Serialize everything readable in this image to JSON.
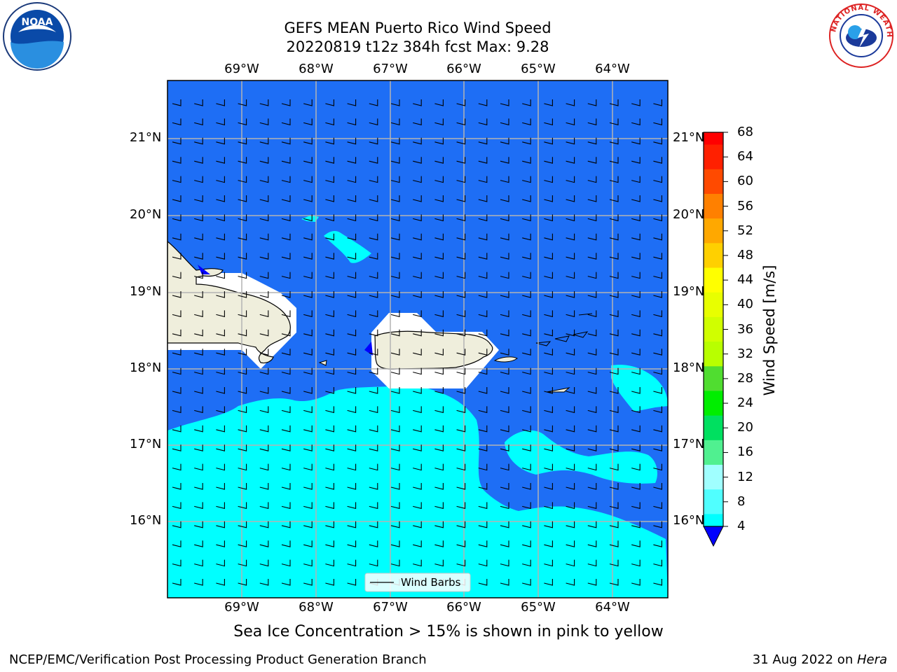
{
  "title": {
    "line1": "GEFS MEAN Puerto Rico Wind Speed",
    "line2": "20220819 t12z 384h fcst   Max: 9.28"
  },
  "map": {
    "lon_labels": [
      "69°W",
      "68°W",
      "67°W",
      "66°W",
      "65°W",
      "64°W"
    ],
    "lat_labels": [
      "21°N",
      "20°N",
      "19°N",
      "18°N",
      "17°N",
      "16°N"
    ],
    "legend_label": "Wind Barbs",
    "colors": {
      "ocean_4_8": "#1e6ef5",
      "ocean_8_12": "#00ffff",
      "land": "#efeedc",
      "deep_blue": "#0000ff"
    }
  },
  "colorbar": {
    "title": "Wind Speed [m/s]",
    "ticks": [
      "68",
      "64",
      "60",
      "56",
      "52",
      "48",
      "44",
      "40",
      "36",
      "32",
      "28",
      "24",
      "20",
      "16",
      "12",
      "8",
      "4"
    ],
    "colors": [
      "#ff0000",
      "#ff2000",
      "#ff4a00",
      "#ff8000",
      "#ffa800",
      "#ffd000",
      "#ffff00",
      "#e8ff00",
      "#d0ff00",
      "#b8ff00",
      "#50dd30",
      "#00ee00",
      "#00e060",
      "#50f090",
      "#a0ffff",
      "#50ffff",
      "#00ffff",
      "#1e6ef5"
    ],
    "extend_color": "#0000ff"
  },
  "caption": "Sea Ice Concentration > 15% is shown in pink to yellow",
  "footer": {
    "left": "NCEP/EMC/Verification Post Processing Product Generation Branch",
    "right_prefix": "31 Aug 2022 on ",
    "right_machine": "Hera"
  },
  "logos": {
    "noaa": "NOAA",
    "nws": "NATIONAL WEATHER SERVICE"
  }
}
